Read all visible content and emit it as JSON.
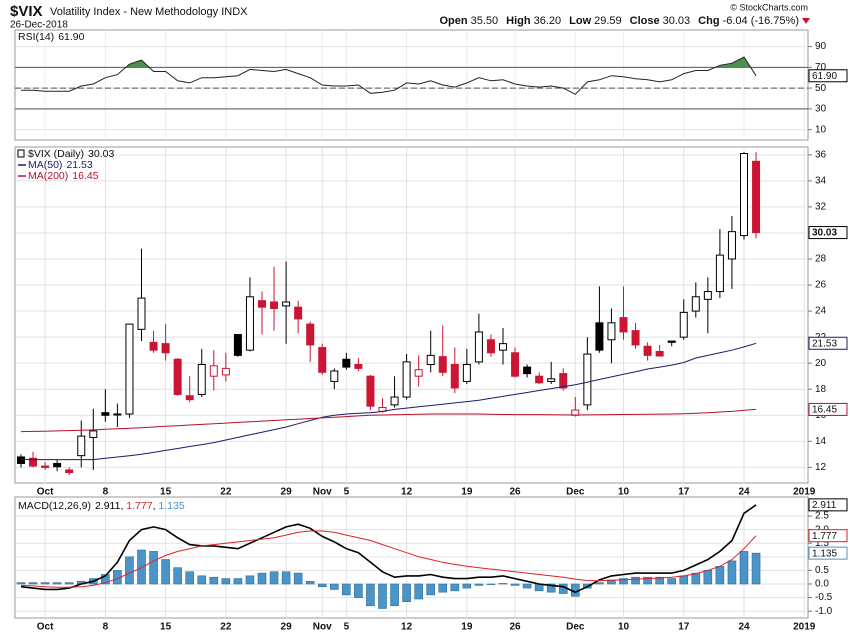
{
  "header": {
    "symbol": "$VIX",
    "name": "Volatility Index - New Methodology INDX",
    "date": "26-Dec-2018",
    "copyright": "© StockCharts.com",
    "quote": [
      {
        "label": "Open",
        "value": "35.50"
      },
      {
        "label": "High",
        "value": "36.20"
      },
      {
        "label": "Low",
        "value": "29.59"
      },
      {
        "label": "Close",
        "value": "30.03"
      },
      {
        "label": "Chg",
        "value": "-6.04 (-16.75%)"
      }
    ]
  },
  "chart_data": [
    {
      "type": "line",
      "ylim": [
        0,
        106
      ],
      "yticks": [
        10,
        30,
        50,
        70,
        90
      ],
      "grid": true,
      "fill_above": 70,
      "fill_color": "#4f8f4f",
      "levels": [
        {
          "value": 70,
          "dashed": false
        },
        {
          "value": 50,
          "dashed": true
        },
        {
          "value": 30,
          "dashed": false
        }
      ],
      "series": [
        {
          "name": "RSI(14)",
          "last_label": "61.90",
          "color": "#222222",
          "values": [
            48,
            48,
            47,
            47,
            47,
            52,
            54,
            60,
            63,
            73,
            77,
            66,
            66,
            57,
            55,
            60,
            60,
            61,
            62,
            68,
            67,
            66,
            68,
            64,
            60,
            53,
            52,
            52,
            53,
            45,
            46,
            48,
            55,
            54,
            57,
            53,
            51,
            55,
            60,
            57,
            58,
            54,
            52,
            51,
            52,
            50,
            44,
            56,
            58,
            62,
            61,
            59,
            58,
            56,
            58,
            64,
            67,
            67,
            72,
            74,
            80,
            61.9
          ]
        }
      ]
    },
    {
      "type": "candlestick",
      "ylim": [
        10.8,
        36.6
      ],
      "yticks": [
        12,
        14,
        16,
        18,
        20,
        22,
        24,
        26,
        28,
        30,
        32,
        34,
        36
      ],
      "grid": true,
      "up_color": "#000000",
      "down_color": "#cc1433",
      "categories": [
        null,
        null,
        "Oct",
        null,
        null,
        null,
        null,
        "8",
        null,
        null,
        null,
        null,
        "15",
        null,
        null,
        null,
        null,
        "22",
        null,
        null,
        null,
        null,
        "29",
        null,
        null,
        "Nov",
        null,
        "5",
        null,
        null,
        null,
        null,
        "12",
        null,
        null,
        null,
        null,
        "19",
        null,
        null,
        null,
        "26",
        null,
        null,
        null,
        null,
        "Dec",
        null,
        null,
        null,
        "10",
        null,
        null,
        null,
        null,
        "17",
        null,
        null,
        null,
        null,
        "24",
        null,
        null,
        null,
        null,
        "2019"
      ],
      "series": [
        {
          "name": "$VIX (Daily)",
          "last_label": "30.03",
          "open": [
            12.8,
            12.7,
            12.1,
            12.3,
            11.8,
            12.9,
            14.3,
            16.2,
            16.1,
            16.1,
            22.6,
            21.6,
            21.5,
            20.3,
            17.5,
            17.6,
            19.0,
            19.1,
            22.2,
            21.0,
            24.8,
            24.7,
            24.4,
            24.3,
            23.0,
            21.2,
            18.6,
            20.3,
            19.9,
            19.0,
            16.3,
            16.8,
            17.4,
            19.0,
            19.9,
            20.5,
            19.9,
            18.6,
            20.1,
            21.8,
            21.0,
            20.8,
            19.7,
            19.0,
            18.6,
            19.2,
            16.0,
            16.8,
            23.1,
            21.8,
            23.5,
            22.5,
            21.3,
            20.9,
            21.7,
            22.0,
            24.0,
            24.9,
            25.5,
            28.0,
            29.8,
            35.5,
            null,
            null,
            null,
            null
          ],
          "high": [
            13.0,
            13.2,
            12.4,
            12.6,
            12.0,
            15.6,
            16.5,
            18.0,
            16.9,
            23.0,
            28.8,
            22.5,
            23.0,
            20.4,
            19.0,
            21.1,
            21.0,
            20.8,
            22.2,
            26.6,
            25.5,
            27.4,
            27.8,
            24.8,
            23.2,
            21.5,
            19.6,
            20.8,
            20.4,
            19.1,
            17.3,
            19.0,
            20.7,
            20.6,
            22.5,
            22.9,
            21.2,
            21.1,
            23.8,
            22.2,
            22.7,
            21.2,
            19.9,
            19.3,
            20.1,
            19.6,
            17.4,
            22.0,
            25.9,
            24.2,
            25.9,
            23.1,
            21.6,
            21.4,
            21.7,
            24.9,
            26.2,
            26.6,
            30.3,
            31.3,
            36.2,
            36.2,
            null,
            null,
            null,
            null
          ],
          "low": [
            12.0,
            12.0,
            11.8,
            11.7,
            11.4,
            12.0,
            11.8,
            15.5,
            15.1,
            15.8,
            21.7,
            20.8,
            20.2,
            17.5,
            17.0,
            17.4,
            17.9,
            18.6,
            20.5,
            20.9,
            22.2,
            22.5,
            21.5,
            22.3,
            20.1,
            19.1,
            18.0,
            19.5,
            19.4,
            16.4,
            16.2,
            16.6,
            17.2,
            18.2,
            19.3,
            19.0,
            17.7,
            18.4,
            19.9,
            20.5,
            19.9,
            18.9,
            18.9,
            18.4,
            18.4,
            17.9,
            15.9,
            16.4,
            20.8,
            20.0,
            21.8,
            21.1,
            20.2,
            20.5,
            21.3,
            21.8,
            23.5,
            22.3,
            25.0,
            25.7,
            29.5,
            29.59,
            null,
            null,
            null,
            null
          ],
          "close": [
            12.3,
            12.1,
            12.0,
            12.05,
            11.6,
            14.4,
            14.8,
            16.0,
            16.05,
            23.0,
            25.0,
            21.0,
            20.8,
            17.6,
            17.2,
            19.9,
            19.8,
            19.6,
            20.6,
            25.1,
            24.3,
            24.2,
            24.7,
            23.4,
            21.4,
            19.3,
            19.4,
            19.7,
            19.6,
            16.7,
            16.6,
            17.4,
            20.1,
            19.5,
            20.6,
            19.3,
            18.1,
            19.9,
            22.4,
            20.8,
            21.5,
            19.0,
            19.2,
            18.5,
            18.8,
            18.1,
            16.4,
            20.7,
            21.0,
            23.1,
            22.4,
            21.4,
            20.6,
            20.55,
            21.6,
            23.9,
            25.1,
            25.5,
            28.3,
            30.1,
            36.1,
            30.03,
            null,
            null,
            null,
            null
          ]
        },
        {
          "name": "MA(50)",
          "last_label": "21.53",
          "color": "#1c1c6e",
          "values": [
            12.6,
            12.6,
            12.6,
            12.6,
            12.6,
            12.6,
            12.6,
            12.7,
            12.8,
            12.9,
            13.0,
            13.15,
            13.3,
            13.45,
            13.6,
            13.75,
            13.9,
            14.1,
            14.3,
            14.5,
            14.7,
            14.9,
            15.1,
            15.35,
            15.6,
            15.85,
            16.0,
            16.1,
            16.15,
            16.2,
            16.3,
            16.45,
            16.55,
            16.65,
            16.75,
            16.85,
            16.95,
            17.05,
            17.15,
            17.3,
            17.45,
            17.6,
            17.75,
            17.9,
            18.05,
            18.2,
            18.35,
            18.55,
            18.75,
            18.95,
            19.15,
            19.35,
            19.55,
            19.7,
            19.85,
            20.05,
            20.4,
            20.6,
            20.8,
            21.0,
            21.25,
            21.53,
            null,
            null,
            null,
            null
          ]
        },
        {
          "name": "MA(200)",
          "last_label": "16.45",
          "color": "#b8102e",
          "values": [
            14.75,
            14.76,
            14.78,
            14.8,
            14.82,
            14.85,
            14.88,
            14.92,
            14.96,
            15.0,
            15.05,
            15.1,
            15.15,
            15.2,
            15.25,
            15.3,
            15.35,
            15.4,
            15.45,
            15.5,
            15.55,
            15.6,
            15.65,
            15.7,
            15.75,
            15.8,
            15.85,
            15.9,
            15.95,
            16.0,
            16.02,
            16.04,
            16.06,
            16.08,
            16.1,
            16.1,
            16.1,
            16.1,
            16.1,
            16.08,
            16.06,
            16.05,
            16.05,
            16.05,
            16.04,
            16.03,
            16.02,
            16.03,
            16.04,
            16.05,
            16.06,
            16.07,
            16.08,
            16.09,
            16.1,
            16.12,
            16.15,
            16.2,
            16.25,
            16.3,
            16.38,
            16.45,
            null,
            null,
            null,
            null
          ]
        }
      ]
    },
    {
      "type": "combo",
      "ylim": [
        -1.25,
        3.2
      ],
      "yticks": [
        {
          "value": -1,
          "label": "-1.0"
        },
        -0.5,
        {
          "value": 0,
          "label": "0.0"
        },
        0.5,
        {
          "value": 1,
          "label": "1.0"
        },
        1.5,
        {
          "value": 2,
          "label": "2.0"
        },
        2.5
      ],
      "grid": true,
      "legend_label": "MACD(12,26,9)",
      "separator": ", ",
      "categories": [
        null,
        null,
        "Oct",
        null,
        null,
        null,
        null,
        "8",
        null,
        null,
        null,
        null,
        "15",
        null,
        null,
        null,
        null,
        "22",
        null,
        null,
        null,
        null,
        "29",
        null,
        null,
        "Nov",
        null,
        "5",
        null,
        null,
        null,
        null,
        "12",
        null,
        null,
        null,
        null,
        "19",
        null,
        null,
        null,
        "26",
        null,
        null,
        null,
        null,
        "Dec",
        null,
        null,
        null,
        "10",
        null,
        null,
        null,
        null,
        "17",
        null,
        null,
        null,
        null,
        "24",
        null,
        null,
        null,
        null,
        "2019"
      ],
      "series": [
        {
          "kind": "line",
          "last_label": "2.911",
          "color": "#000000",
          "values": [
            -0.1,
            -0.15,
            -0.2,
            -0.2,
            -0.15,
            0.0,
            0.1,
            0.3,
            0.8,
            1.6,
            2.0,
            2.1,
            2.0,
            1.7,
            1.45,
            1.4,
            1.4,
            1.35,
            1.3,
            1.5,
            1.7,
            1.9,
            2.1,
            2.2,
            2.05,
            1.75,
            1.55,
            1.3,
            1.15,
            0.8,
            0.45,
            0.25,
            0.3,
            0.3,
            0.35,
            0.25,
            0.2,
            0.2,
            0.25,
            0.25,
            0.3,
            0.2,
            0.1,
            0.0,
            -0.05,
            -0.1,
            -0.3,
            -0.1,
            0.15,
            0.3,
            0.35,
            0.4,
            0.4,
            0.4,
            0.4,
            0.5,
            0.7,
            0.9,
            1.2,
            1.6,
            2.6,
            2.911,
            null,
            null,
            null,
            null
          ]
        },
        {
          "kind": "line",
          "last_label": "1.777",
          "color": "#e0202a",
          "values": [
            -0.05,
            -0.07,
            -0.1,
            -0.12,
            -0.12,
            -0.1,
            -0.05,
            0.05,
            0.2,
            0.4,
            0.6,
            0.85,
            1.05,
            1.2,
            1.3,
            1.4,
            1.45,
            1.5,
            1.55,
            1.6,
            1.65,
            1.7,
            1.8,
            1.9,
            1.95,
            1.95,
            1.9,
            1.8,
            1.7,
            1.6,
            1.45,
            1.3,
            1.15,
            1.0,
            0.9,
            0.8,
            0.72,
            0.65,
            0.6,
            0.55,
            0.5,
            0.45,
            0.4,
            0.35,
            0.3,
            0.25,
            0.18,
            0.13,
            0.12,
            0.14,
            0.16,
            0.18,
            0.2,
            0.22,
            0.25,
            0.3,
            0.38,
            0.5,
            0.65,
            0.9,
            1.3,
            1.777,
            null,
            null,
            null,
            null
          ]
        },
        {
          "kind": "bar",
          "last_label": "1.135",
          "color": "#4a94c8",
          "values": [
            0.05,
            0.05,
            0.05,
            0.05,
            0.05,
            0.1,
            0.2,
            0.35,
            0.5,
            1.0,
            1.25,
            1.2,
            0.9,
            0.6,
            0.45,
            0.3,
            0.25,
            0.2,
            0.2,
            0.3,
            0.4,
            0.45,
            0.45,
            0.4,
            0.1,
            -0.1,
            -0.2,
            -0.4,
            -0.5,
            -0.8,
            -0.9,
            -0.8,
            -0.65,
            -0.55,
            -0.4,
            -0.3,
            -0.25,
            -0.15,
            -0.05,
            -0.02,
            0.02,
            -0.05,
            -0.15,
            -0.25,
            -0.3,
            -0.35,
            -0.45,
            -0.15,
            0.05,
            0.15,
            0.2,
            0.25,
            0.25,
            0.25,
            0.2,
            0.3,
            0.4,
            0.5,
            0.65,
            0.85,
            1.2,
            1.135,
            null,
            null,
            null,
            null
          ]
        }
      ]
    }
  ]
}
